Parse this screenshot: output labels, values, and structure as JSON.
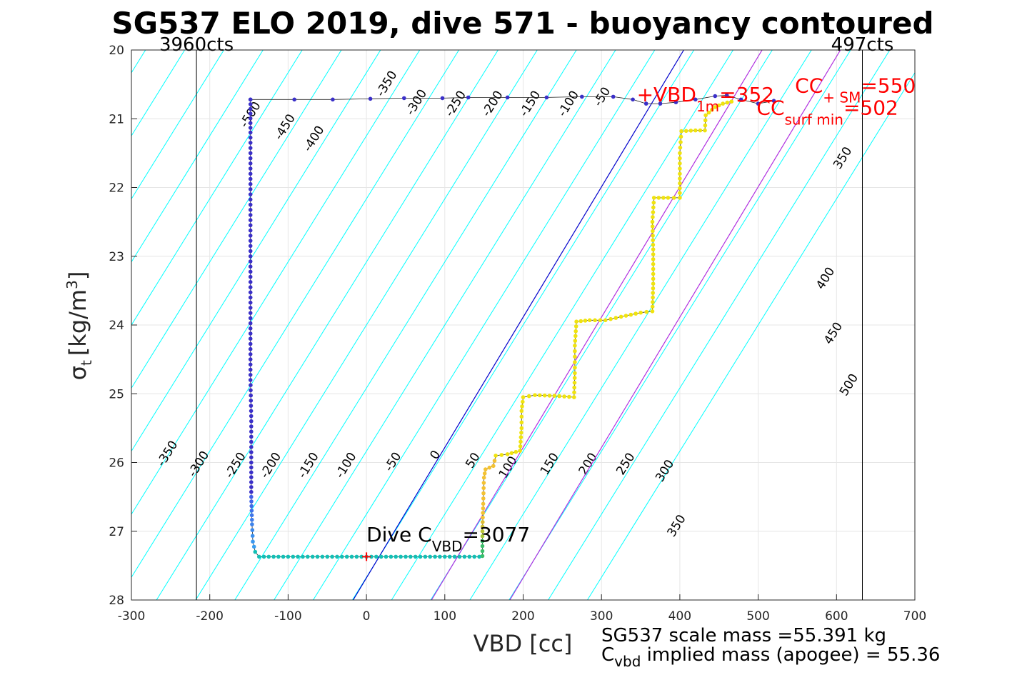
{
  "chart_data": {
    "type": "scatter",
    "title": "SG537 ELO 2019, dive 571 - buoyancy contoured",
    "xlabel": "VBD [cc]",
    "ylabel": "σ",
    "ylabel_sub": "t",
    "ylabel_unit": "[kg/m",
    "ylabel_unit_sup": "3",
    "ylabel_unit_close": "]",
    "xlim": [
      -300,
      700
    ],
    "ylim": [
      20,
      28
    ],
    "y_reversed": true,
    "grid": true,
    "x_ticks": [
      "-300",
      "-200",
      "-100",
      "0",
      "100",
      "200",
      "300",
      "400",
      "500",
      "600",
      "700"
    ],
    "y_ticks": [
      "20",
      "21",
      "22",
      "23",
      "24",
      "25",
      "26",
      "27",
      "28"
    ],
    "vbd_limits": [
      {
        "x": -217,
        "label": "3960cts"
      },
      {
        "x": 633,
        "label": "497cts"
      }
    ],
    "contours": {
      "color": "#00ffff",
      "slope_x_per_sigma": -54.5,
      "reference_sigma": 24,
      "levels": [
        -500,
        -450,
        -400,
        -350,
        -300,
        -250,
        -200,
        -150,
        -100,
        -50,
        0,
        50,
        100,
        150,
        200,
        250,
        300,
        350,
        400,
        450,
        500
      ],
      "labels": [
        {
          "text": "-500",
          "x": -144,
          "y": 20.97
        },
        {
          "text": "-450",
          "x": -100,
          "y": 21.15
        },
        {
          "text": "-400",
          "x": -63,
          "y": 21.32
        },
        {
          "text": "-350",
          "x": 30,
          "y": 20.52
        },
        {
          "text": "-300",
          "x": 68,
          "y": 20.79
        },
        {
          "text": "-250",
          "x": 118,
          "y": 20.81
        },
        {
          "text": "-200",
          "x": 165,
          "y": 20.81
        },
        {
          "text": "-150",
          "x": 213,
          "y": 20.81
        },
        {
          "text": "-100",
          "x": 262,
          "y": 20.81
        },
        {
          "text": "-50",
          "x": 305,
          "y": 20.71
        },
        {
          "text": "-350",
          "x": -250,
          "y": 25.9
        },
        {
          "text": "-300",
          "x": -210,
          "y": 26.05
        },
        {
          "text": "-250",
          "x": -163,
          "y": 26.07
        },
        {
          "text": "-200",
          "x": -118,
          "y": 26.07
        },
        {
          "text": "-150",
          "x": -70,
          "y": 26.07
        },
        {
          "text": "-100",
          "x": -22,
          "y": 26.07
        },
        {
          "text": "-50",
          "x": 38,
          "y": 26.02
        },
        {
          "text": "0",
          "x": 92,
          "y": 25.92
        },
        {
          "text": "50",
          "x": 140,
          "y": 26.0
        },
        {
          "text": "100",
          "x": 185,
          "y": 26.1
        },
        {
          "text": "150",
          "x": 238,
          "y": 26.05
        },
        {
          "text": "200",
          "x": 287,
          "y": 26.05
        },
        {
          "text": "250",
          "x": 335,
          "y": 26.05
        },
        {
          "text": "300",
          "x": 385,
          "y": 26.15
        },
        {
          "text": "350",
          "x": 400,
          "y": 26.95
        },
        {
          "text": "350",
          "x": 612,
          "y": 21.6
        },
        {
          "text": "400",
          "x": 590,
          "y": 23.35
        },
        {
          "text": "450",
          "x": 600,
          "y": 24.15
        },
        {
          "text": "500",
          "x": 620,
          "y": 24.9
        }
      ]
    },
    "ref_lines": [
      {
        "name": "neutral",
        "color": "#0000cc",
        "x0": -17,
        "y0": 28,
        "x1": 405,
        "y1": 20
      },
      {
        "name": "magenta-1",
        "color": "#b030e0",
        "x0": 83,
        "y0": 28,
        "x1": 505,
        "y1": 20
      },
      {
        "name": "magenta-2",
        "color": "#b030e0",
        "x0": 183,
        "y0": 28,
        "x1": 605,
        "y1": 20
      }
    ],
    "markers": [
      {
        "x": 0,
        "y": 27.37,
        "color": "#ff0000",
        "shape": "plus"
      }
    ],
    "series": [
      {
        "role": "dive",
        "points": [
          [
            -148,
            20.72
          ],
          [
            -148,
            21.2
          ],
          [
            -148,
            21.8
          ],
          [
            -148,
            22.4
          ],
          [
            -148,
            23.0
          ],
          [
            -148,
            23.6
          ],
          [
            -148,
            24.2
          ],
          [
            -148,
            24.8
          ],
          [
            -147,
            25.4
          ],
          [
            -147,
            26.0
          ],
          [
            -147,
            26.5
          ],
          [
            -146,
            26.9
          ],
          [
            -145,
            27.15
          ],
          [
            -142,
            27.3
          ],
          [
            -137,
            27.37
          ],
          [
            -100,
            27.37
          ],
          [
            -50,
            27.37
          ],
          [
            0,
            27.37
          ],
          [
            50,
            27.37
          ],
          [
            100,
            27.37
          ],
          [
            144,
            27.37
          ]
        ]
      },
      {
        "role": "climb",
        "points": [
          [
            148,
            27.36
          ],
          [
            148,
            27.0
          ],
          [
            149,
            26.6
          ],
          [
            150,
            26.22
          ],
          [
            152,
            26.1
          ],
          [
            162,
            26.05
          ],
          [
            165,
            25.9
          ],
          [
            180,
            25.88
          ],
          [
            196,
            25.83
          ],
          [
            198,
            25.5
          ],
          [
            198,
            25.25
          ],
          [
            200,
            25.05
          ],
          [
            215,
            25.02
          ],
          [
            240,
            25.03
          ],
          [
            265,
            25.05
          ],
          [
            266,
            24.7
          ],
          [
            266,
            24.3
          ],
          [
            268,
            23.95
          ],
          [
            285,
            23.93
          ],
          [
            305,
            23.93
          ],
          [
            325,
            23.88
          ],
          [
            350,
            23.82
          ],
          [
            365,
            23.8
          ],
          [
            366,
            23.4
          ],
          [
            366,
            22.9
          ],
          [
            365,
            22.5
          ],
          [
            367,
            22.15
          ],
          [
            385,
            22.15
          ],
          [
            400,
            22.15
          ],
          [
            400,
            21.8
          ],
          [
            400,
            21.5
          ],
          [
            402,
            21.18
          ],
          [
            420,
            21.17
          ],
          [
            432,
            21.17
          ],
          [
            433,
            20.95
          ],
          [
            445,
            20.83
          ],
          [
            455,
            20.78
          ],
          [
            466,
            20.75
          ]
        ]
      },
      {
        "role": "surface",
        "points": [
          [
            -148,
            20.72
          ],
          [
            -92,
            20.72
          ],
          [
            -43,
            20.72
          ],
          [
            5,
            20.71
          ],
          [
            48,
            20.7
          ],
          [
            97,
            20.7
          ],
          [
            130,
            20.69
          ],
          [
            180,
            20.69
          ],
          [
            230,
            20.69
          ],
          [
            275,
            20.68
          ],
          [
            315,
            20.68
          ],
          [
            340,
            20.72
          ],
          [
            357,
            20.78
          ],
          [
            375,
            20.78
          ],
          [
            395,
            20.76
          ],
          [
            420,
            20.72
          ],
          [
            445,
            20.67
          ],
          [
            460,
            20.66
          ],
          [
            478,
            20.72
          ],
          [
            500,
            20.78
          ],
          [
            520,
            20.74
          ]
        ]
      }
    ],
    "annotations": [
      {
        "name": "vbd-1m",
        "color": "#ff0000",
        "x": 345,
        "y": 20.75,
        "pre": "+VBD",
        "sub": "1m",
        "post": "=352"
      },
      {
        "name": "cc-sm",
        "color": "#ff0000",
        "x": 547,
        "y": 20.62,
        "pre": "CC",
        "sub": "+ SM",
        "post": "=550"
      },
      {
        "name": "cc-surf-min",
        "color": "#ff0000",
        "x": 498,
        "y": 20.94,
        "pre": "CC",
        "sub": "surf min",
        "post": "=502"
      },
      {
        "name": "dive-c-vbd",
        "color": "#000000",
        "x": 0,
        "y": 27.15,
        "pre": "Dive C",
        "sub": "VBD",
        "post": "=3077"
      }
    ],
    "footer": {
      "line1": "SG537 scale mass =55.391 kg",
      "line2_pre": "C",
      "line2_sub": "vbd",
      "line2_post": " implied mass (apogee) = 55.36"
    }
  },
  "colors": {
    "axis": "#262626",
    "grid": "#e6e6e6",
    "dive_deep": "#3a2fc8",
    "dive_bottom": "#13bfb5",
    "climb_top": "#f0e30e"
  }
}
